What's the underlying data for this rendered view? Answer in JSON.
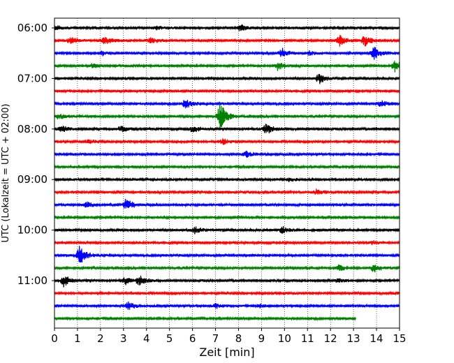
{
  "chart_data": {
    "type": "line",
    "xlabel": "Zeit  [min]",
    "ylabel": "UTC (Lokalzeit = UTC + 02:00)",
    "xlim": [
      0,
      15
    ],
    "x_ticks": [
      0,
      1,
      2,
      3,
      4,
      5,
      6,
      7,
      8,
      9,
      10,
      11,
      12,
      13,
      14,
      15
    ],
    "x_tick_labels": [
      "0",
      "1",
      "2",
      "3",
      "4",
      "5",
      "6",
      "7",
      "8",
      "9",
      "10",
      "11",
      "12",
      "13",
      "14",
      "15"
    ],
    "y_tick_labels": [
      "06:00",
      "07:00",
      "08:00",
      "09:00",
      "10:00",
      "11:00"
    ],
    "y_tick_trace_index": [
      0,
      4,
      8,
      12,
      16,
      20
    ],
    "grid": "vertical dotted at each minute",
    "color_cycle": [
      "#000000",
      "#ff0000",
      "#0000ff",
      "#008000"
    ],
    "trace_minutes": 15,
    "traces": [
      {
        "start": "06:00",
        "end_min": 15,
        "events": [
          [
            0.1,
            0.35
          ],
          [
            4.4,
            0.3
          ],
          [
            8.1,
            0.6
          ]
        ]
      },
      {
        "start": "06:15",
        "end_min": 15,
        "events": [
          [
            0.7,
            0.7
          ],
          [
            2.2,
            0.6
          ],
          [
            4.2,
            0.5
          ],
          [
            12.4,
            0.9
          ],
          [
            13.5,
            0.9
          ]
        ]
      },
      {
        "start": "06:30",
        "end_min": 15,
        "events": [
          [
            2.1,
            0.35
          ],
          [
            9.9,
            0.8
          ],
          [
            11.1,
            0.4
          ],
          [
            13.9,
            1.1
          ]
        ]
      },
      {
        "start": "06:45",
        "end_min": 15,
        "events": [
          [
            1.7,
            0.4
          ],
          [
            9.7,
            0.8
          ],
          [
            14.8,
            1.0
          ]
        ]
      },
      {
        "start": "07:00",
        "end_min": 15,
        "events": [
          [
            11.5,
            0.9
          ]
        ]
      },
      {
        "start": "07:15",
        "end_min": 15,
        "events": []
      },
      {
        "start": "07:30",
        "end_min": 15,
        "events": [
          [
            5.7,
            0.9
          ],
          [
            14.2,
            0.5
          ]
        ]
      },
      {
        "start": "07:45",
        "end_min": 15,
        "events": [
          [
            0.2,
            0.5
          ],
          [
            7.2,
            2.4
          ]
        ]
      },
      {
        "start": "08:00",
        "end_min": 15,
        "events": [
          [
            0.3,
            0.6
          ],
          [
            2.9,
            0.5
          ],
          [
            6.0,
            0.6
          ],
          [
            9.2,
            1.0
          ]
        ]
      },
      {
        "start": "08:15",
        "end_min": 15,
        "events": [
          [
            1.5,
            0.3
          ],
          [
            7.3,
            0.6
          ]
        ]
      },
      {
        "start": "08:30",
        "end_min": 15,
        "events": [
          [
            8.3,
            0.6
          ]
        ]
      },
      {
        "start": "08:45",
        "end_min": 15,
        "events": []
      },
      {
        "start": "09:00",
        "end_min": 15,
        "events": [
          [
            10.2,
            0.3
          ]
        ]
      },
      {
        "start": "09:15",
        "end_min": 15,
        "events": [
          [
            11.4,
            0.5
          ]
        ]
      },
      {
        "start": "09:30",
        "end_min": 15,
        "events": [
          [
            1.4,
            0.5
          ],
          [
            3.1,
            1.1
          ]
        ]
      },
      {
        "start": "09:45",
        "end_min": 15,
        "events": []
      },
      {
        "start": "10:00",
        "end_min": 15,
        "events": [
          [
            6.1,
            0.6
          ],
          [
            9.9,
            0.6
          ]
        ]
      },
      {
        "start": "10:15",
        "end_min": 15,
        "events": [
          [
            13.8,
            0.3
          ]
        ]
      },
      {
        "start": "10:30",
        "end_min": 15,
        "events": [
          [
            1.1,
            1.8
          ]
        ]
      },
      {
        "start": "10:45",
        "end_min": 15,
        "events": [
          [
            12.4,
            0.5
          ],
          [
            13.9,
            0.7
          ]
        ]
      },
      {
        "start": "11:00",
        "end_min": 15,
        "events": [
          [
            0.4,
            1.0
          ],
          [
            3.1,
            0.6
          ],
          [
            3.7,
            0.8
          ],
          [
            12.3,
            0.3
          ]
        ]
      },
      {
        "start": "11:15",
        "end_min": 15,
        "events": []
      },
      {
        "start": "11:30",
        "end_min": 15,
        "events": [
          [
            3.2,
            0.7
          ],
          [
            7.0,
            0.4
          ],
          [
            8.9,
            0.3
          ]
        ]
      },
      {
        "start": "11:45",
        "end_min": 13.1,
        "events": []
      }
    ]
  }
}
